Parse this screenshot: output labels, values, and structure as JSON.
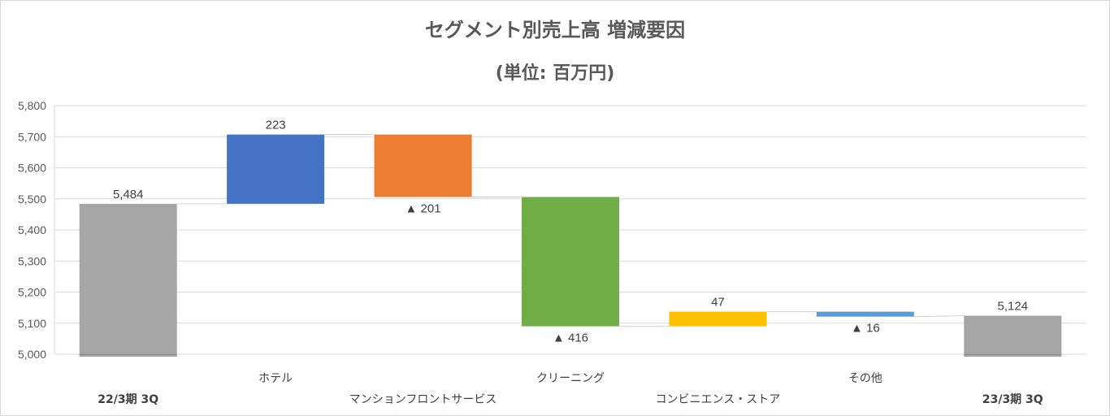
{
  "chart_data": {
    "type": "bar",
    "subtype": "waterfall",
    "title": "セグメント別売上高 増減要因",
    "subtitle": "(単位: 百万円)",
    "xlabel": "",
    "ylabel": "",
    "ylim": [
      5000,
      5800
    ],
    "y_ticks": [
      5000,
      5100,
      5200,
      5300,
      5400,
      5500,
      5600,
      5700,
      5800
    ],
    "y_tick_labels": [
      "5,000",
      "5,100",
      "5,200",
      "5,300",
      "5,400",
      "5,500",
      "5,600",
      "5,700",
      "5,800"
    ],
    "grid": true,
    "legend": "none",
    "categories": [
      "22/3期 3Q",
      "ホテル",
      "マンションフロントサービス",
      "クリーニング",
      "コンビニエンス・ストア",
      "その他",
      "23/3期 3Q"
    ],
    "values": [
      5484,
      223,
      -201,
      -416,
      47,
      -16,
      5124
    ],
    "bar_kind": [
      "total",
      "delta",
      "delta",
      "delta",
      "delta",
      "delta",
      "total"
    ],
    "data_labels": [
      "5,484",
      "223",
      "▲ 201",
      "▲ 416",
      "47",
      "▲ 16",
      "5,124"
    ],
    "colors": [
      "#a5a5a5",
      "#4472c4",
      "#ed7d31",
      "#70ad47",
      "#ffc000",
      "#5b9bd5",
      "#a5a5a5"
    ]
  }
}
